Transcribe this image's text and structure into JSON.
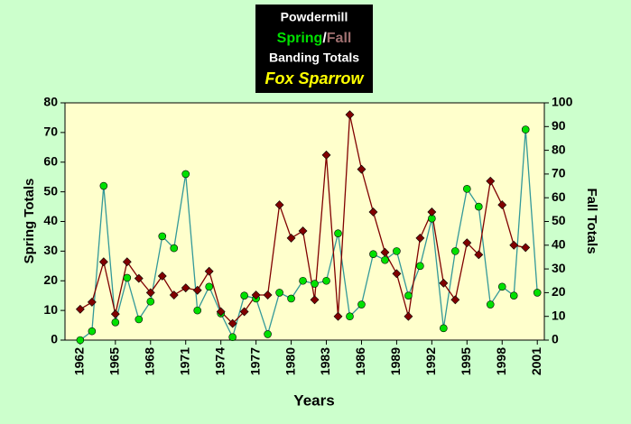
{
  "chart_data": {
    "type": "line",
    "title": "Powdermill",
    "title_separator": "/",
    "subtitle": "Banding Totals",
    "species": "Fox Sparrow",
    "x_label": "Years",
    "y_label": "Spring Totals",
    "y2_label": "Fall Totals",
    "x": [
      1962,
      1963,
      1964,
      1965,
      1966,
      1967,
      1968,
      1969,
      1970,
      1971,
      1972,
      1973,
      1974,
      1975,
      1976,
      1977,
      1978,
      1979,
      1980,
      1981,
      1982,
      1983,
      1984,
      1985,
      1986,
      1987,
      1988,
      1989,
      1990,
      1991,
      1992,
      1993,
      1994,
      1995,
      1996,
      1997,
      1998,
      1999,
      2000,
      2001
    ],
    "series": [
      {
        "name": "Spring",
        "color": "#00e000",
        "line_color": "#339999",
        "marker": "circle",
        "values": [
          0,
          3,
          52,
          6,
          21,
          7,
          13,
          35,
          31,
          56,
          10,
          18,
          9,
          1,
          15,
          14,
          2,
          16,
          14,
          20,
          19,
          20,
          36,
          8,
          12,
          29,
          27,
          30,
          15,
          25,
          41,
          4,
          30,
          51,
          45,
          12,
          18,
          15,
          71,
          16
        ]
      },
      {
        "name": "Fall",
        "color": "#800000",
        "line_color": "#800000",
        "marker": "diamond",
        "axis": "y2",
        "name_color": "#a07070",
        "values": [
          13,
          16,
          33,
          11,
          33,
          26,
          20,
          27,
          19,
          22,
          21,
          29,
          12,
          7,
          12,
          19,
          19,
          57,
          43,
          46,
          17,
          78,
          10,
          95,
          72,
          54,
          37,
          28,
          10,
          43,
          54,
          24,
          17,
          41,
          36,
          67,
          57,
          40,
          39,
          null
        ]
      }
    ],
    "xlim": [
      1960.7,
      2001.6
    ],
    "xticks": [
      1962,
      1965,
      1968,
      1971,
      1974,
      1977,
      1980,
      1983,
      1986,
      1989,
      1992,
      1995,
      1998,
      2001
    ],
    "ylim": [
      0,
      80
    ],
    "yticks": [
      0,
      10,
      20,
      30,
      40,
      50,
      60,
      70,
      80
    ],
    "y2lim": [
      0,
      100
    ],
    "y2ticks": [
      0,
      10,
      20,
      30,
      40,
      50,
      60,
      70,
      80,
      90,
      100
    ],
    "grid": false
  }
}
